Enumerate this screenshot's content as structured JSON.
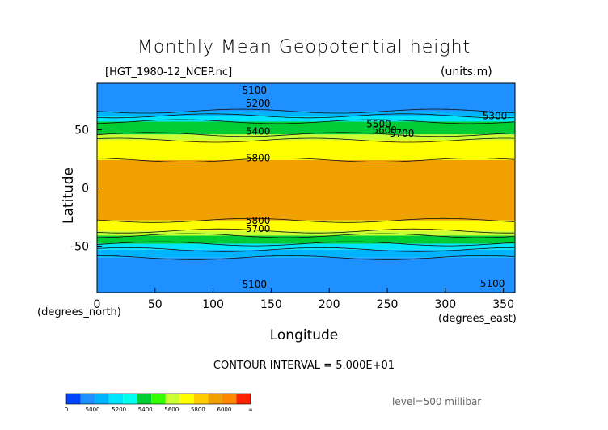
{
  "chart_data": {
    "type": "heatmap",
    "title": "Monthly Mean Geopotential height",
    "file_label": "[HGT_1980-12_NCEP.nc]",
    "units_label": "(units:m)",
    "xlabel": "Longitude",
    "ylabel": "Latitude",
    "x_unit_label": "(degrees_east)",
    "y_unit_label": "(degrees_north)",
    "xlim": [
      0,
      360
    ],
    "ylim": [
      -90,
      90
    ],
    "x_ticks": [
      0,
      50,
      100,
      150,
      200,
      250,
      300,
      350
    ],
    "y_ticks": [
      50,
      0,
      -50
    ],
    "contour_interval_text": "CONTOUR INTERVAL = 5.000E+01",
    "level_text": "level=500 millibar",
    "bands": [
      {
        "lat_from": 90,
        "lat_to": 66,
        "color": "#1e90ff"
      },
      {
        "lat_from": 66,
        "lat_to": 62,
        "color": "#00b3ff"
      },
      {
        "lat_from": 62,
        "lat_to": 57,
        "color": "#00e5ff"
      },
      {
        "lat_from": 57,
        "lat_to": 46,
        "color": "#00cc33"
      },
      {
        "lat_from": 46,
        "lat_to": 41,
        "color": "#ccff33"
      },
      {
        "lat_from": 41,
        "lat_to": 24,
        "color": "#ffff00"
      },
      {
        "lat_from": 24,
        "lat_to": -28,
        "color": "#f0a000"
      },
      {
        "lat_from": -28,
        "lat_to": -37,
        "color": "#ffff00"
      },
      {
        "lat_from": -37,
        "lat_to": -41,
        "color": "#ccff33"
      },
      {
        "lat_from": -41,
        "lat_to": -48,
        "color": "#00cc33"
      },
      {
        "lat_from": -48,
        "lat_to": -53,
        "color": "#00e5ff"
      },
      {
        "lat_from": -53,
        "lat_to": -60,
        "color": "#00b3ff"
      },
      {
        "lat_from": -60,
        "lat_to": -90,
        "color": "#1e90ff"
      }
    ],
    "contour_labels": [
      {
        "text": "5100",
        "lon": 125,
        "lat": 81
      },
      {
        "text": "5200",
        "lon": 128,
        "lat": 70
      },
      {
        "text": "5300",
        "lon": 332,
        "lat": 59
      },
      {
        "text": "5400",
        "lon": 128,
        "lat": 46
      },
      {
        "text": "5500",
        "lon": 232,
        "lat": 52
      },
      {
        "text": "5600",
        "lon": 237,
        "lat": 47
      },
      {
        "text": "5700",
        "lon": 252,
        "lat": 44
      },
      {
        "text": "5800",
        "lon": 128,
        "lat": 23
      },
      {
        "text": "5800",
        "lon": 128,
        "lat": -31
      },
      {
        "text": "5700",
        "lon": 128,
        "lat": -38
      },
      {
        "text": "5100",
        "lon": 125,
        "lat": -86
      },
      {
        "text": "5100",
        "lon": 330,
        "lat": -85
      }
    ],
    "colorbar": {
      "colors": [
        "#0044ff",
        "#1e90ff",
        "#00b3ff",
        "#00e5ff",
        "#00ffee",
        "#00cc33",
        "#33ff00",
        "#ccff33",
        "#ffff00",
        "#ffcc00",
        "#f0a000",
        "#ff8800",
        "#ff2200"
      ],
      "labels": [
        "0",
        "5000",
        "5200",
        "5400",
        "5600",
        "5800",
        "6000",
        "∞"
      ]
    }
  }
}
